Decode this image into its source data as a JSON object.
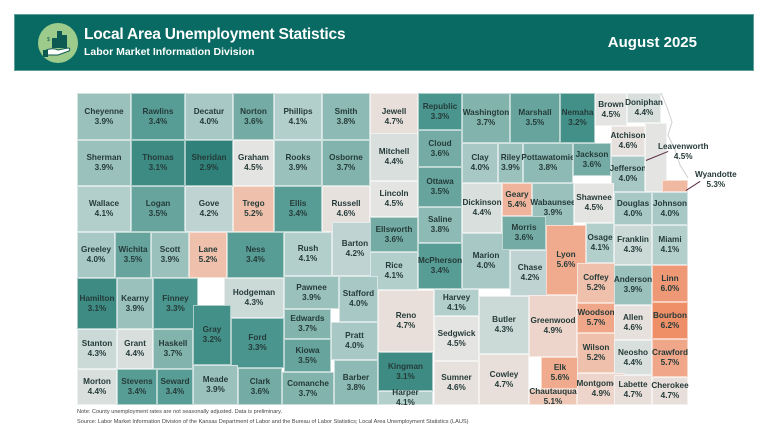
{
  "header": {
    "title": "Local Area Unemployment Statistics",
    "subtitle": "Labor Market Information Division",
    "period": "August 2025",
    "logo_icon": "hand-holding-buildings-icon"
  },
  "legend_colors": {
    "low": "#3f8f86",
    "mid": "#e9e3e0",
    "high": "#f09a78",
    "banner": "#086a62"
  },
  "counties": [
    {
      "name": "Cheyenne",
      "rate": "3.9%"
    },
    {
      "name": "Rawlins",
      "rate": "3.4%"
    },
    {
      "name": "Decatur",
      "rate": "4.0%"
    },
    {
      "name": "Norton",
      "rate": "3.6%"
    },
    {
      "name": "Phillips",
      "rate": "4.1%"
    },
    {
      "name": "Smith",
      "rate": "3.8%"
    },
    {
      "name": "Jewell",
      "rate": "4.7%"
    },
    {
      "name": "Republic",
      "rate": "3.3%"
    },
    {
      "name": "Washington",
      "rate": "3.7%"
    },
    {
      "name": "Marshall",
      "rate": "3.5%"
    },
    {
      "name": "Nemaha",
      "rate": "3.2%"
    },
    {
      "name": "Brown",
      "rate": "4.5%"
    },
    {
      "name": "Doniphan",
      "rate": "4.4%"
    },
    {
      "name": "Sherman",
      "rate": "3.9%"
    },
    {
      "name": "Thomas",
      "rate": "3.1%"
    },
    {
      "name": "Sheridan",
      "rate": "2.9%"
    },
    {
      "name": "Graham",
      "rate": "4.5%"
    },
    {
      "name": "Rooks",
      "rate": "3.9%"
    },
    {
      "name": "Osborne",
      "rate": "3.7%"
    },
    {
      "name": "Mitchell",
      "rate": "4.4%"
    },
    {
      "name": "Cloud",
      "rate": "3.6%"
    },
    {
      "name": "Clay",
      "rate": "4.0%"
    },
    {
      "name": "Riley",
      "rate": "3.9%"
    },
    {
      "name": "Pottawatomie",
      "rate": "3.8%"
    },
    {
      "name": "Jackson",
      "rate": "3.6%"
    },
    {
      "name": "Atchison",
      "rate": "4.6%"
    },
    {
      "name": "Jefferson",
      "rate": "4.0%"
    },
    {
      "name": "Leavenworth",
      "rate": "4.5%"
    },
    {
      "name": "Wyandotte",
      "rate": "5.3%"
    },
    {
      "name": "Wallace",
      "rate": "4.1%"
    },
    {
      "name": "Logan",
      "rate": "3.5%"
    },
    {
      "name": "Gove",
      "rate": "4.2%"
    },
    {
      "name": "Trego",
      "rate": "5.2%"
    },
    {
      "name": "Ellis",
      "rate": "3.4%"
    },
    {
      "name": "Russell",
      "rate": "4.6%"
    },
    {
      "name": "Lincoln",
      "rate": "4.5%"
    },
    {
      "name": "Ottawa",
      "rate": "3.5%"
    },
    {
      "name": "Saline",
      "rate": "3.8%"
    },
    {
      "name": "Dickinson",
      "rate": "4.4%"
    },
    {
      "name": "Geary",
      "rate": "5.4%"
    },
    {
      "name": "Wabaunsee",
      "rate": "3.9%"
    },
    {
      "name": "Shawnee",
      "rate": "4.5%"
    },
    {
      "name": "Douglas",
      "rate": "4.0%"
    },
    {
      "name": "Johnson",
      "rate": "4.0%"
    },
    {
      "name": "Greeley",
      "rate": "4.0%"
    },
    {
      "name": "Wichita",
      "rate": "3.5%"
    },
    {
      "name": "Scott",
      "rate": "3.9%"
    },
    {
      "name": "Lane",
      "rate": "5.2%"
    },
    {
      "name": "Ness",
      "rate": "3.4%"
    },
    {
      "name": "Rush",
      "rate": "4.1%"
    },
    {
      "name": "Barton",
      "rate": "4.2%"
    },
    {
      "name": "Ellsworth",
      "rate": "3.6%"
    },
    {
      "name": "Rice",
      "rate": "4.1%"
    },
    {
      "name": "McPherson",
      "rate": "3.4%"
    },
    {
      "name": "Marion",
      "rate": "4.0%"
    },
    {
      "name": "Morris",
      "rate": "3.6%"
    },
    {
      "name": "Chase",
      "rate": "4.2%"
    },
    {
      "name": "Lyon",
      "rate": "5.6%"
    },
    {
      "name": "Osage",
      "rate": "4.1%"
    },
    {
      "name": "Franklin",
      "rate": "4.3%"
    },
    {
      "name": "Miami",
      "rate": "4.1%"
    },
    {
      "name": "Hamilton",
      "rate": "3.1%"
    },
    {
      "name": "Kearny",
      "rate": "3.9%"
    },
    {
      "name": "Finney",
      "rate": "3.3%"
    },
    {
      "name": "Hodgeman",
      "rate": "4.3%"
    },
    {
      "name": "Pawnee",
      "rate": "3.9%"
    },
    {
      "name": "Stafford",
      "rate": "4.0%"
    },
    {
      "name": "Reno",
      "rate": "4.7%"
    },
    {
      "name": "Harvey",
      "rate": "4.1%"
    },
    {
      "name": "Butler",
      "rate": "4.3%"
    },
    {
      "name": "Greenwood",
      "rate": "4.9%"
    },
    {
      "name": "Coffey",
      "rate": "5.2%"
    },
    {
      "name": "Anderson",
      "rate": "3.9%"
    },
    {
      "name": "Linn",
      "rate": "6.0%"
    },
    {
      "name": "Woodson",
      "rate": "5.7%"
    },
    {
      "name": "Allen",
      "rate": "4.6%"
    },
    {
      "name": "Bourbon",
      "rate": "6.2%"
    },
    {
      "name": "Stanton",
      "rate": "4.3%"
    },
    {
      "name": "Grant",
      "rate": "4.4%"
    },
    {
      "name": "Haskell",
      "rate": "3.7%"
    },
    {
      "name": "Gray",
      "rate": "3.2%"
    },
    {
      "name": "Ford",
      "rate": "3.3%"
    },
    {
      "name": "Edwards",
      "rate": "3.7%"
    },
    {
      "name": "Kiowa",
      "rate": "3.5%"
    },
    {
      "name": "Pratt",
      "rate": "4.0%"
    },
    {
      "name": "Kingman",
      "rate": "3.1%"
    },
    {
      "name": "Sedgwick",
      "rate": "4.5%"
    },
    {
      "name": "Elk",
      "rate": "5.6%"
    },
    {
      "name": "Wilson",
      "rate": "5.2%"
    },
    {
      "name": "Neosho",
      "rate": "4.4%"
    },
    {
      "name": "Crawford",
      "rate": "5.7%"
    },
    {
      "name": "Morton",
      "rate": "4.4%"
    },
    {
      "name": "Stevens",
      "rate": "3.4%"
    },
    {
      "name": "Seward",
      "rate": "3.4%"
    },
    {
      "name": "Meade",
      "rate": "3.9%"
    },
    {
      "name": "Clark",
      "rate": "3.6%"
    },
    {
      "name": "Comanche",
      "rate": "3.7%"
    },
    {
      "name": "Barber",
      "rate": "3.8%"
    },
    {
      "name": "Harper",
      "rate": "4.1%"
    },
    {
      "name": "Sumner",
      "rate": "4.6%"
    },
    {
      "name": "Cowley",
      "rate": "4.7%"
    },
    {
      "name": "Chautauqua",
      "rate": "5.1%"
    },
    {
      "name": "Montgomery",
      "rate": "4.9%"
    },
    {
      "name": "Labette",
      "rate": "4.7%"
    },
    {
      "name": "Cherokee",
      "rate": "4.7%"
    }
  ],
  "footer": {
    "note": "Note: County unemployment rates are not seasonally adjusted. Data is preliminary.",
    "source": "Source: Labor Market Information Division of the Kansas Department of Labor and the Bureau of Labor Statistics; Local Area Unemployment Statistics (LAUS)"
  }
}
